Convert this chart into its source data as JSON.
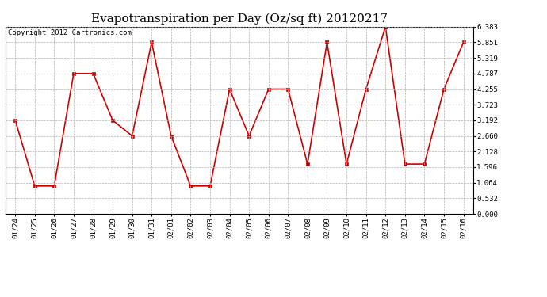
{
  "title": "Evapotranspiration per Day (Oz/sq ft) 20120217",
  "copyright_text": "Copyright 2012 Cartronics.com",
  "x_labels": [
    "01/24",
    "01/25",
    "01/26",
    "01/27",
    "01/28",
    "01/29",
    "01/30",
    "01/31",
    "02/01",
    "02/02",
    "02/03",
    "02/04",
    "02/05",
    "02/06",
    "02/07",
    "02/08",
    "02/09",
    "02/10",
    "02/11",
    "02/12",
    "02/13",
    "02/14",
    "02/15",
    "02/16"
  ],
  "y_values": [
    3.192,
    0.95,
    0.95,
    4.787,
    4.787,
    3.192,
    2.66,
    5.851,
    2.66,
    0.95,
    0.95,
    4.255,
    2.66,
    4.255,
    4.255,
    1.7,
    5.851,
    1.7,
    4.255,
    6.383,
    1.7,
    1.7,
    4.255,
    5.851
  ],
  "line_color": "#cc0000",
  "marker_color": "#cc0000",
  "background_color": "#ffffff",
  "grid_color": "#b0b0b0",
  "y_ticks": [
    0.0,
    0.532,
    1.064,
    1.596,
    2.128,
    2.66,
    3.192,
    3.723,
    4.255,
    4.787,
    5.319,
    5.851,
    6.383
  ],
  "ylim": [
    0.0,
    6.383
  ],
  "title_fontsize": 11,
  "copyright_fontsize": 6.5,
  "tick_fontsize": 6.5
}
